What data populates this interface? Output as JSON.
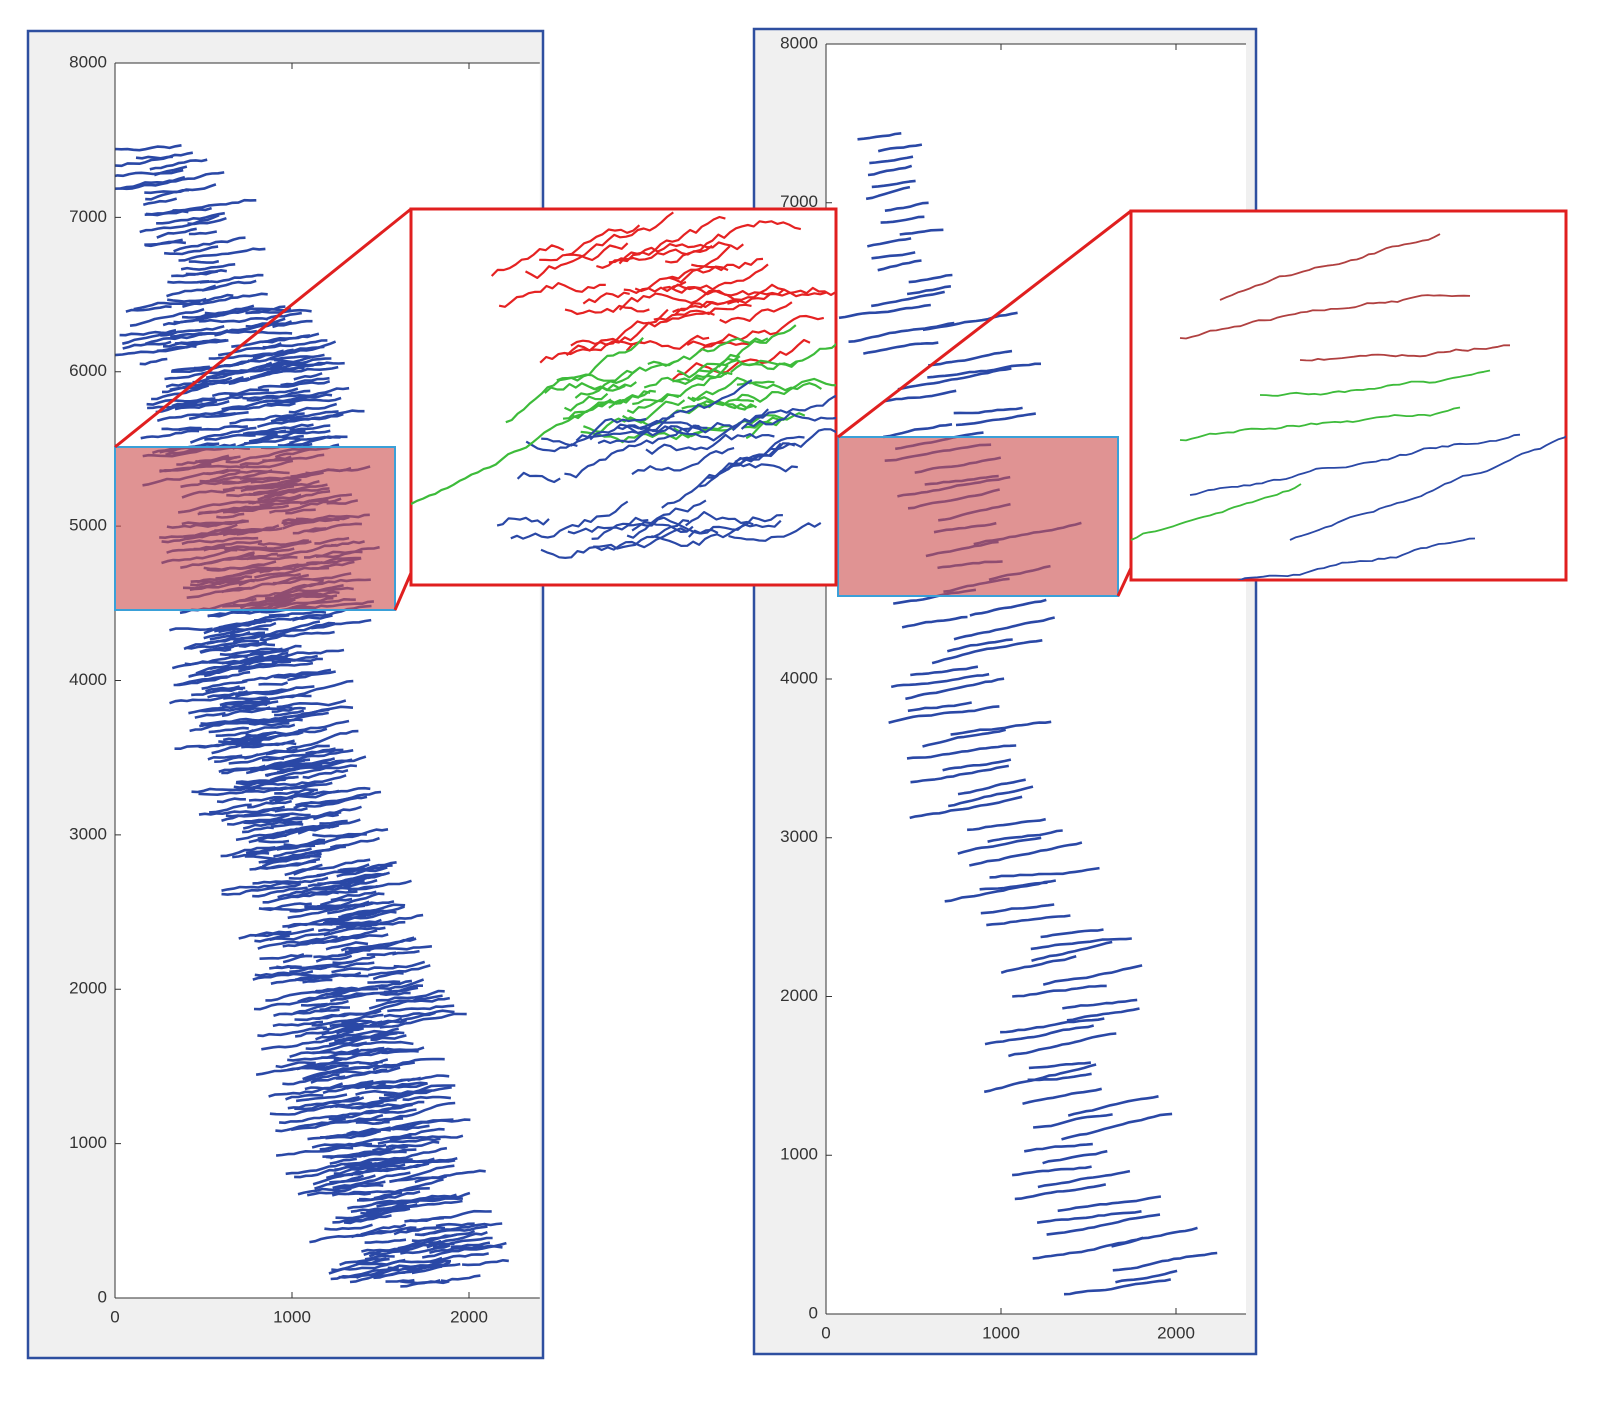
{
  "chart_data": [
    {
      "type": "line",
      "xlim": [
        0,
        2400
      ],
      "ylim": [
        0,
        8000
      ],
      "xticks": [
        0,
        1000,
        2000
      ],
      "yticks": [
        0,
        1000,
        2000,
        3000,
        4000,
        5000,
        6000,
        7000,
        8000
      ]
    },
    {
      "type": "line",
      "xlim": [
        0,
        2400
      ],
      "ylim": [
        0,
        8000
      ],
      "xticks": [
        0,
        1000,
        2000
      ],
      "yticks": [
        0,
        1000,
        2000,
        3000,
        4000,
        5000,
        6000,
        7000,
        8000
      ]
    }
  ]
}
